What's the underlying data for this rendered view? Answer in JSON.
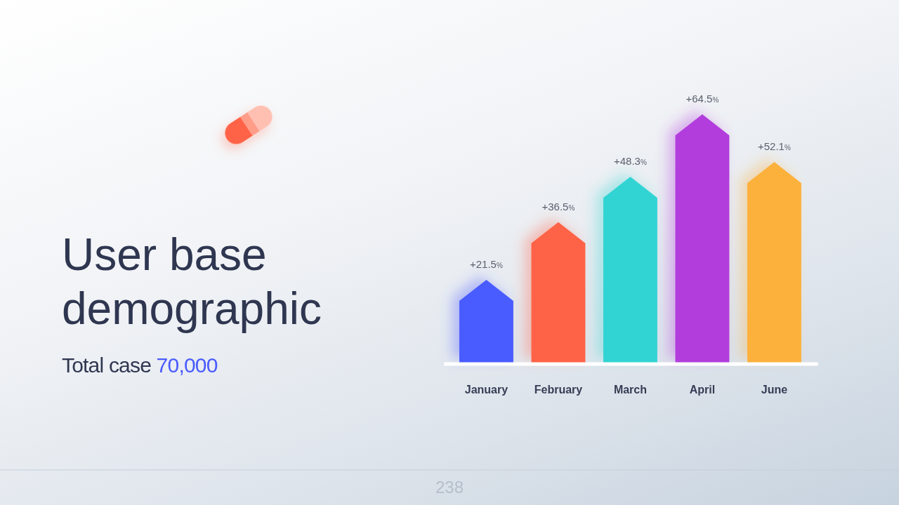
{
  "chart_data": {
    "type": "bar",
    "title": "User base demographic",
    "subtitle": "Total case 70,000",
    "categories": [
      "January",
      "February",
      "March",
      "April",
      "June"
    ],
    "values": [
      21.5,
      36.5,
      48.3,
      64.5,
      52.1
    ],
    "colors": [
      "#4a5bff",
      "#ff6347",
      "#33d4d3",
      "#b23ddc",
      "#fcb13d"
    ],
    "value_labels": [
      "+21.5%",
      "+36.5%",
      "+48.3%",
      "+64.5%",
      "+52.1%"
    ],
    "tick_labels": "x",
    "annotations": [
      "238"
    ]
  }
}
